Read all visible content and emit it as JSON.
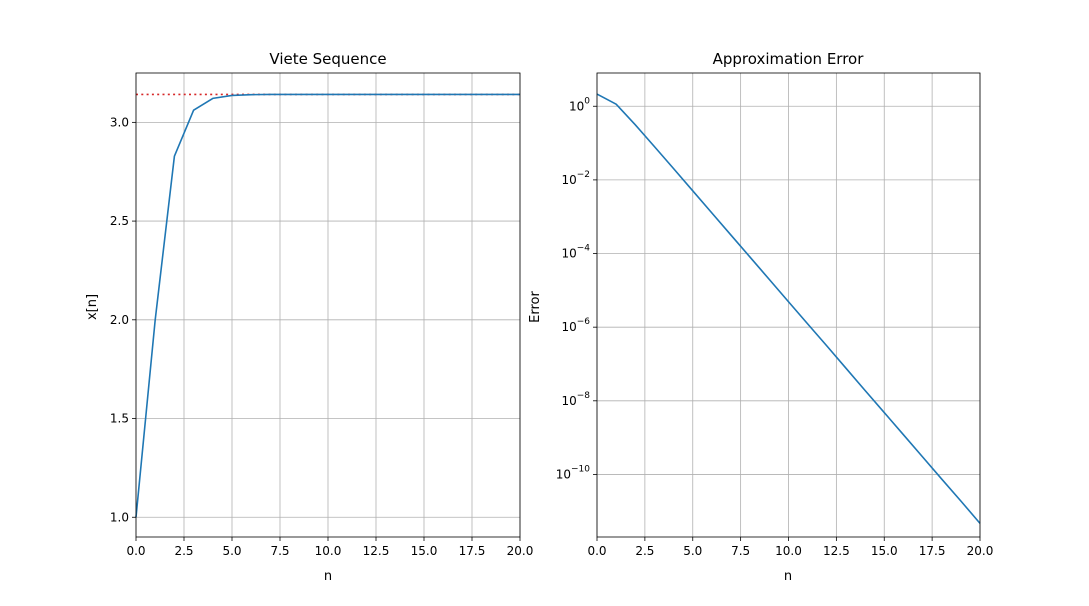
{
  "chart_data": [
    {
      "type": "line",
      "title": "Viete Sequence",
      "xlabel": "n",
      "ylabel": "x[n]",
      "xlim": [
        0,
        20
      ],
      "ylim": [
        0.9,
        3.25
      ],
      "grid": true,
      "xticks": [
        0,
        2.5,
        5,
        7.5,
        10,
        12.5,
        15,
        17.5,
        20
      ],
      "xtick_labels": [
        "0.0",
        "2.5",
        "5.0",
        "7.5",
        "10.0",
        "12.5",
        "15.0",
        "17.5",
        "20.0"
      ],
      "yticks": [
        1.0,
        1.5,
        2.0,
        2.5,
        3.0
      ],
      "ytick_labels": [
        "1.0",
        "1.5",
        "2.0",
        "2.5",
        "3.0"
      ],
      "reference_line": {
        "y": 3.14159,
        "color": "#d62728",
        "style": "dotted"
      },
      "series": [
        {
          "color": "#1f77b4",
          "x": [
            0,
            1,
            2,
            3,
            4,
            5,
            6,
            7,
            8,
            9,
            10,
            11,
            12,
            13,
            14,
            15,
            16,
            17,
            18,
            19,
            20
          ],
          "y": [
            1.0,
            2.0,
            2.8284,
            3.0615,
            3.1214,
            3.1365,
            3.1403,
            3.1413,
            3.1415,
            3.1416,
            3.1416,
            3.1416,
            3.1416,
            3.1416,
            3.1416,
            3.1416,
            3.1416,
            3.1416,
            3.1416,
            3.1416,
            3.1416
          ]
        }
      ]
    },
    {
      "type": "line",
      "title": "Approximation Error",
      "xlabel": "n",
      "ylabel": "Error",
      "xlim": [
        0,
        20
      ],
      "ylim": [
        2e-12,
        8
      ],
      "yscale": "log",
      "grid": true,
      "xticks": [
        0,
        2.5,
        5,
        7.5,
        10,
        12.5,
        15,
        17.5,
        20
      ],
      "xtick_labels": [
        "0.0",
        "2.5",
        "5.0",
        "7.5",
        "10.0",
        "12.5",
        "15.0",
        "17.5",
        "20.0"
      ],
      "yticks": [
        1,
        0.01,
        0.0001,
        1e-06,
        1e-08,
        1e-10
      ],
      "ytick_labels": [
        {
          "base": "10",
          "exp": "0"
        },
        {
          "base": "10",
          "exp": "−2"
        },
        {
          "base": "10",
          "exp": "−4"
        },
        {
          "base": "10",
          "exp": "−6"
        },
        {
          "base": "10",
          "exp": "−8"
        },
        {
          "base": "10",
          "exp": "−10"
        }
      ],
      "series": [
        {
          "color": "#1f77b4",
          "x": [
            0,
            1,
            2,
            3,
            4,
            5,
            6,
            7,
            8,
            9,
            10,
            11,
            12,
            13,
            14,
            15,
            16,
            17,
            18,
            19,
            20
          ],
          "y": [
            2.14,
            1.14,
            0.313,
            0.08,
            0.0202,
            0.00505,
            0.00126,
            0.000315,
            7.9e-05,
            1.97e-05,
            4.9e-06,
            1.23e-06,
            3.1e-07,
            7.7e-08,
            1.9e-08,
            4.8e-09,
            1.2e-09,
            3e-10,
            7.5e-11,
            1.9e-11,
            4.7e-12
          ]
        }
      ]
    }
  ]
}
